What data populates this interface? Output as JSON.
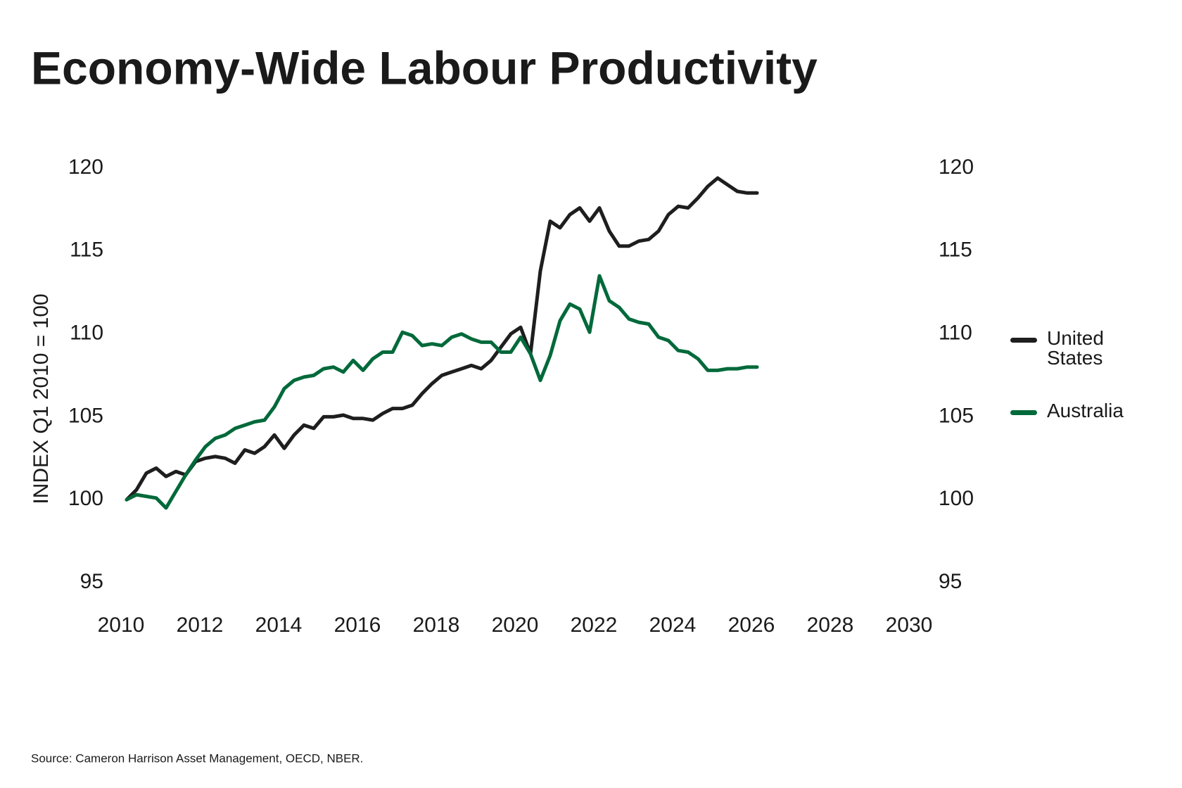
{
  "chart_data": {
    "type": "line",
    "title": "Economy-Wide Labour Productivity",
    "y_label": "INDEX Q1 2010 = 100",
    "source": "Source: Cameron Harrison Asset Management, OECD, NBER.",
    "x": [
      2010,
      2010.25,
      2010.5,
      2010.75,
      2011,
      2011.25,
      2011.5,
      2011.75,
      2012,
      2012.25,
      2012.5,
      2012.75,
      2013,
      2013.25,
      2013.5,
      2013.75,
      2014,
      2014.25,
      2014.5,
      2014.75,
      2015,
      2015.25,
      2015.5,
      2015.75,
      2016,
      2016.25,
      2016.5,
      2016.75,
      2017,
      2017.25,
      2017.5,
      2017.75,
      2018,
      2018.25,
      2018.5,
      2018.75,
      2019,
      2019.25,
      2019.5,
      2019.75,
      2020,
      2020.25,
      2020.5,
      2020.75,
      2021,
      2021.25,
      2021.5,
      2021.75,
      2022,
      2022.25,
      2022.5,
      2022.75,
      2023,
      2023.25,
      2023.5,
      2023.75,
      2024,
      2024.25,
      2024.5,
      2024.75,
      2025,
      2025.25,
      2025.5,
      2025.75,
      2026
    ],
    "series": [
      {
        "name": "United States",
        "color": "#1e1e1e",
        "values": [
          100.0,
          100.6,
          101.6,
          101.9,
          101.4,
          101.7,
          101.5,
          102.3,
          102.5,
          102.6,
          102.5,
          102.2,
          103.0,
          102.8,
          103.2,
          103.9,
          103.1,
          103.9,
          104.5,
          104.3,
          105.0,
          105.0,
          105.1,
          104.9,
          104.9,
          104.8,
          105.2,
          105.5,
          105.5,
          105.7,
          106.4,
          107.0,
          107.5,
          107.7,
          107.9,
          108.1,
          107.9,
          108.4,
          109.2,
          110.0,
          110.4,
          108.8,
          113.8,
          116.8,
          116.4,
          117.2,
          117.6,
          116.8,
          117.6,
          116.2,
          115.3,
          115.3,
          115.6,
          115.7,
          116.2,
          117.2,
          117.7,
          117.6,
          118.2,
          118.9,
          119.4,
          119.0,
          118.6,
          118.5,
          118.5
        ]
      },
      {
        "name": "Australia",
        "color": "#00693a",
        "values": [
          100.0,
          100.3,
          100.2,
          100.1,
          99.5,
          100.5,
          101.5,
          102.4,
          103.2,
          103.7,
          103.9,
          104.3,
          104.5,
          104.7,
          104.8,
          105.6,
          106.7,
          107.2,
          107.4,
          107.5,
          107.9,
          108.0,
          107.7,
          108.4,
          107.8,
          108.5,
          108.9,
          108.9,
          110.1,
          109.9,
          109.3,
          109.4,
          109.3,
          109.8,
          110.0,
          109.7,
          109.5,
          109.5,
          108.9,
          108.9,
          109.8,
          108.8,
          107.2,
          108.7,
          110.8,
          111.8,
          111.5,
          110.1,
          113.5,
          112.0,
          111.6,
          110.9,
          110.7,
          110.6,
          109.8,
          109.6,
          109.0,
          108.9,
          108.5,
          107.8,
          107.8,
          107.9,
          107.9,
          108.0,
          108.0
        ]
      }
    ],
    "xlim": [
      2010,
      2030
    ],
    "xticks": [
      2010,
      2012,
      2014,
      2016,
      2018,
      2020,
      2022,
      2024,
      2026,
      2028,
      2030
    ],
    "ylim": [
      95,
      120
    ],
    "yticks": [
      95,
      100,
      105,
      110,
      115,
      120
    ],
    "y2lim": [
      95,
      120
    ],
    "y2ticks": [
      95,
      100,
      105,
      110,
      115,
      120
    ],
    "grid": false,
    "legend": "right"
  }
}
